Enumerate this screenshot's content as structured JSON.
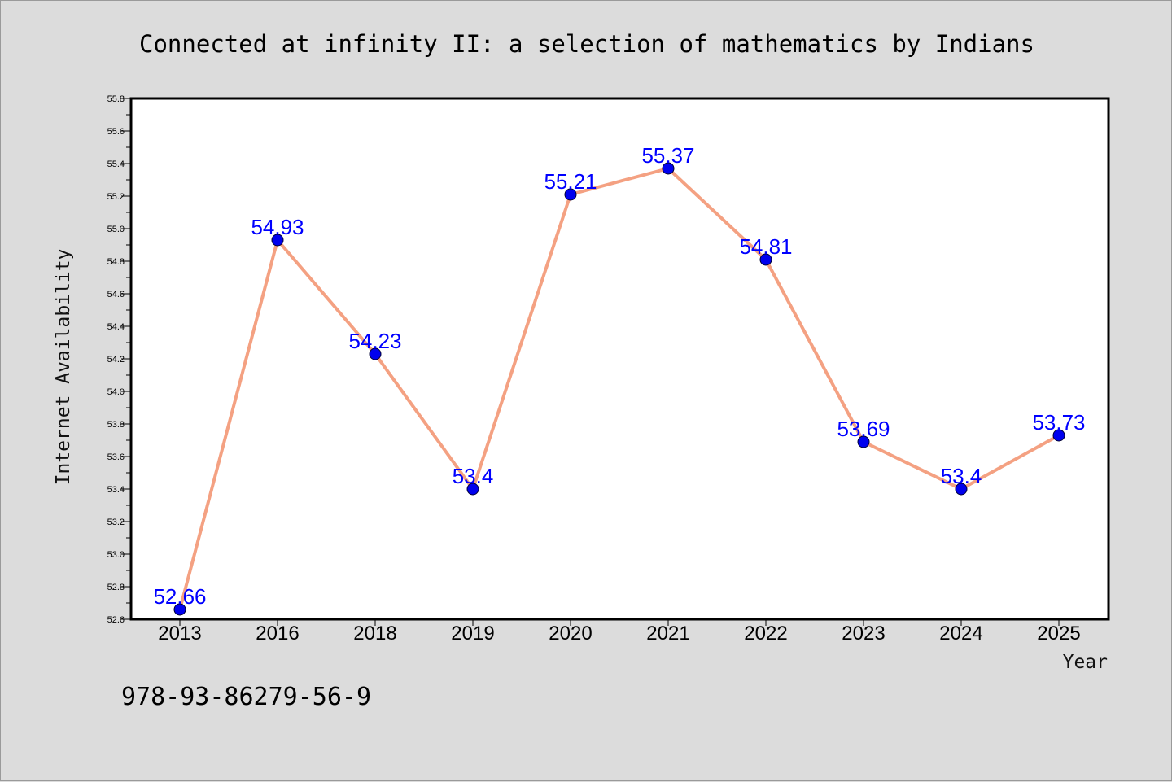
{
  "colors": {
    "background": "#dcdcdc",
    "plot_background": "#ffffff",
    "line": "#f4a182",
    "marker": "#0000ee",
    "data_label": "#0000ff"
  },
  "chart_data": {
    "type": "line",
    "title": "Connected at infinity II: a selection of mathematics by Indians",
    "xlabel": "Year",
    "ylabel": "Internet Availability",
    "categories": [
      "2013",
      "2016",
      "2018",
      "2019",
      "2020",
      "2021",
      "2022",
      "2023",
      "2024",
      "2025"
    ],
    "series": [
      {
        "values": [
          52.66,
          54.93,
          54.23,
          53.4,
          55.21,
          55.37,
          54.81,
          53.69,
          53.4,
          53.73
        ],
        "data_labels": [
          "52.66",
          "54.93",
          "54.23",
          "53.4",
          "55.21",
          "55.37",
          "54.81",
          "53.69",
          "53.4",
          "53.73"
        ]
      }
    ],
    "ylim": [
      52.6,
      55.8
    ],
    "yticks": [
      "52.6",
      "52.8",
      "53.0",
      "53.2",
      "53.4",
      "53.6",
      "53.8",
      "54.0",
      "54.2",
      "54.4",
      "54.6",
      "54.8",
      "55.0",
      "55.2",
      "55.4",
      "55.6",
      "55.8"
    ],
    "grid": false,
    "legend": "none"
  },
  "footer": {
    "isbn": "978-93-86279-56-9"
  }
}
